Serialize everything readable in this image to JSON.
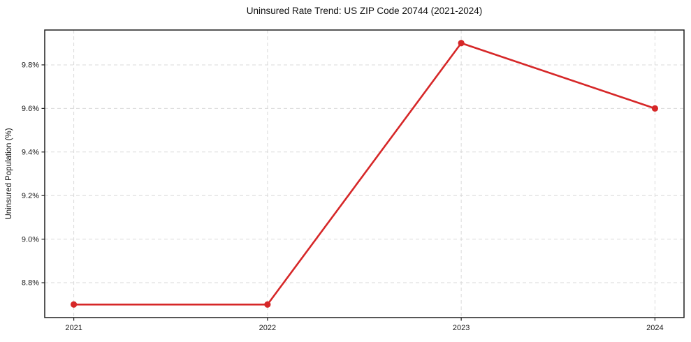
{
  "chart_data": {
    "type": "line",
    "title": "Uninsured Rate Trend: US ZIP Code 20744 (2021-2024)",
    "xlabel": "",
    "ylabel": "Uninsured Population (%)",
    "categories": [
      "2021",
      "2022",
      "2023",
      "2024"
    ],
    "values": [
      8.7,
      8.7,
      9.9,
      9.6
    ],
    "ylim": [
      8.64,
      9.96
    ],
    "yticks": [
      8.8,
      9.0,
      9.2,
      9.4,
      9.6,
      9.8
    ],
    "ytick_labels": [
      "8.8%",
      "9.0%",
      "9.2%",
      "9.4%",
      "9.6%",
      "9.8%"
    ],
    "grid": true,
    "grid_style": "dashed",
    "legend_position": "none",
    "x_margin": 0.05,
    "colors": {
      "line": "#d62728",
      "marker": "#d62728",
      "grid": "#d9d9d9",
      "axis": "#1f1f1f",
      "text": "#1a1a1a",
      "background": "#ffffff"
    }
  }
}
